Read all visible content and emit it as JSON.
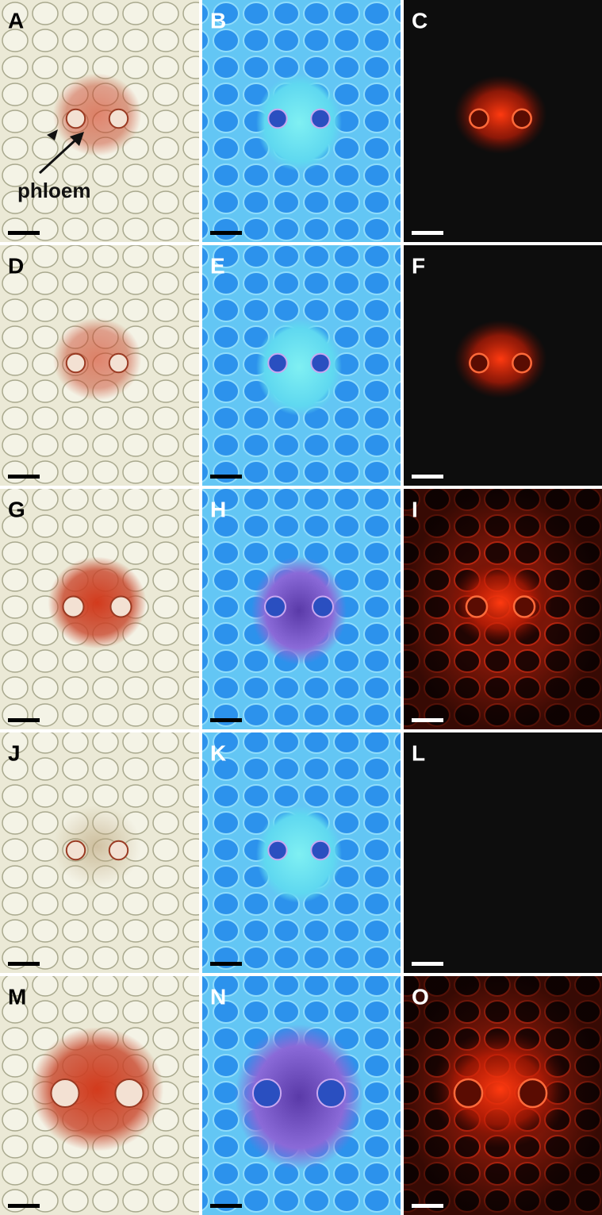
{
  "panels": [
    {
      "label": "A"
    },
    {
      "label": "B"
    },
    {
      "label": "C"
    },
    {
      "label": "D"
    },
    {
      "label": "E"
    },
    {
      "label": "F"
    },
    {
      "label": "G"
    },
    {
      "label": "H"
    },
    {
      "label": "I"
    },
    {
      "label": "J"
    },
    {
      "label": "K"
    },
    {
      "label": "L"
    },
    {
      "label": "M"
    },
    {
      "label": "N"
    },
    {
      "label": "O"
    }
  ],
  "annotation": "phloem"
}
